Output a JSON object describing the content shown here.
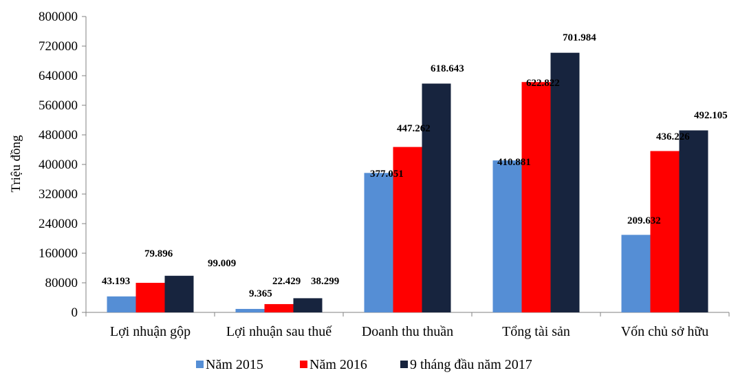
{
  "chart_data": {
    "type": "bar",
    "title": "",
    "xlabel": "",
    "ylabel": "Triệu đồng",
    "ylim": [
      0,
      800000
    ],
    "yticks": [
      0,
      80000,
      160000,
      240000,
      320000,
      400000,
      480000,
      560000,
      640000,
      720000,
      800000
    ],
    "ytick_labels": [
      "0",
      "80000",
      "160000",
      "240000",
      "320000",
      "400000",
      "480000",
      "560000",
      "640000",
      "720000",
      "800000"
    ],
    "categories": [
      "Lợi nhuận gộp",
      "Lợi nhuận sau thuế",
      "Doanh thu thuần",
      "Tổng tài sản",
      "Vốn chủ sở hữu"
    ],
    "series": [
      {
        "name": "Năm 2015",
        "color": "#558ED5",
        "values": [
          43193,
          9365,
          377051,
          410881,
          209632
        ],
        "labels": [
          "43.193",
          "9.365",
          "377.051",
          "410.881",
          "209.632"
        ]
      },
      {
        "name": "Năm 2016",
        "color": "#FF0000",
        "values": [
          79896,
          22429,
          447262,
          622822,
          436226
        ],
        "labels": [
          "79.896",
          "22.429",
          "447.262",
          "622.822",
          "436.226"
        ]
      },
      {
        "name": "9 tháng đầu năm 2017",
        "color": "#17243E",
        "values": [
          99009,
          38299,
          618643,
          701984,
          492105
        ],
        "labels": [
          "99.009",
          "38.299",
          "618.643",
          "701.984",
          "492.105"
        ]
      }
    ],
    "grid": false,
    "legend_position": "bottom"
  }
}
